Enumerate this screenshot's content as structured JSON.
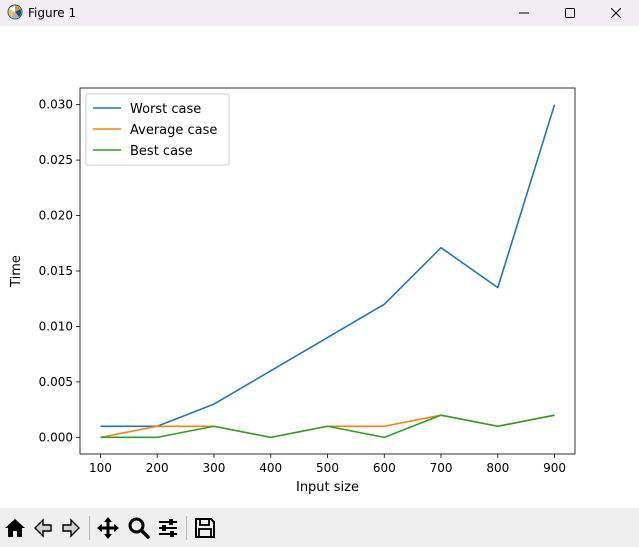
{
  "window": {
    "title": "Figure 1",
    "controls": [
      "minimize-icon",
      "maximize-icon",
      "close-icon"
    ]
  },
  "toolbar": {
    "buttons": [
      "home-icon",
      "back-icon",
      "forward-icon",
      "pan-icon",
      "zoom-icon",
      "configure-subplots-icon",
      "save-icon"
    ]
  },
  "chart_data": {
    "type": "line",
    "title": "",
    "xlabel": "Input size",
    "ylabel": "Time",
    "x": [
      100,
      200,
      300,
      400,
      500,
      600,
      700,
      800,
      900
    ],
    "xticks": [
      "100",
      "200",
      "300",
      "400",
      "500",
      "600",
      "700",
      "800",
      "900"
    ],
    "yticks": [
      "0.000",
      "0.005",
      "0.010",
      "0.015",
      "0.020",
      "0.025",
      "0.030"
    ],
    "xlim": [
      64,
      936
    ],
    "ylim": [
      -0.0015,
      0.0315
    ],
    "grid": false,
    "legend_position": "upper-left",
    "series": [
      {
        "name": "Worst case",
        "color": "#1f77b4",
        "values": [
          0.001,
          0.001,
          0.003,
          0.006,
          0.009,
          0.012,
          0.0171,
          0.0135,
          0.03
        ]
      },
      {
        "name": "Average case",
        "color": "#ff7f0e",
        "values": [
          0.0,
          0.001,
          0.001,
          0.0,
          0.001,
          0.001,
          0.002,
          0.001,
          0.002
        ]
      },
      {
        "name": "Best case",
        "color": "#2ca02c",
        "values": [
          0.0,
          0.0,
          0.001,
          0.0,
          0.001,
          0.0,
          0.002,
          0.001,
          0.002
        ]
      }
    ]
  }
}
